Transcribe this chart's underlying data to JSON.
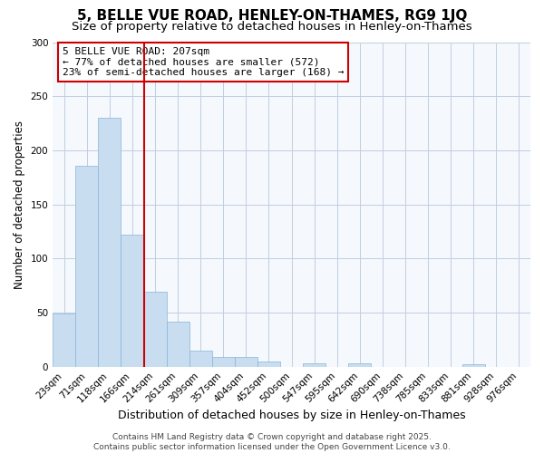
{
  "title": "5, BELLE VUE ROAD, HENLEY-ON-THAMES, RG9 1JQ",
  "subtitle": "Size of property relative to detached houses in Henley-on-Thames",
  "xlabel": "Distribution of detached houses by size in Henley-on-Thames",
  "ylabel": "Number of detached properties",
  "categories": [
    "23sqm",
    "71sqm",
    "118sqm",
    "166sqm",
    "214sqm",
    "261sqm",
    "309sqm",
    "357sqm",
    "404sqm",
    "452sqm",
    "500sqm",
    "547sqm",
    "595sqm",
    "642sqm",
    "690sqm",
    "738sqm",
    "785sqm",
    "833sqm",
    "881sqm",
    "928sqm",
    "976sqm"
  ],
  "values": [
    49,
    186,
    230,
    122,
    69,
    42,
    15,
    9,
    9,
    5,
    0,
    3,
    0,
    3,
    0,
    0,
    0,
    0,
    2,
    0,
    0
  ],
  "bar_color": "#c8ddf0",
  "bar_edge_color": "#8ab4d8",
  "grid_color": "#c0cfe0",
  "background_color": "#ffffff",
  "plot_bg_color": "#f5f8fd",
  "vline_color": "#cc0000",
  "vline_x": 3.5,
  "annotation_text": "5 BELLE VUE ROAD: 207sqm\n← 77% of detached houses are smaller (572)\n23% of semi-detached houses are larger (168) →",
  "annotation_box_edgecolor": "#cc0000",
  "annotation_box_facecolor": "#ffffff",
  "footer": "Contains HM Land Registry data © Crown copyright and database right 2025.\nContains public sector information licensed under the Open Government Licence v3.0.",
  "ylim": [
    0,
    300
  ],
  "yticks": [
    0,
    50,
    100,
    150,
    200,
    250,
    300
  ],
  "title_fontsize": 11,
  "subtitle_fontsize": 9.5,
  "xlabel_fontsize": 9,
  "ylabel_fontsize": 8.5,
  "tick_fontsize": 7.5,
  "annotation_fontsize": 8,
  "footer_fontsize": 6.5
}
